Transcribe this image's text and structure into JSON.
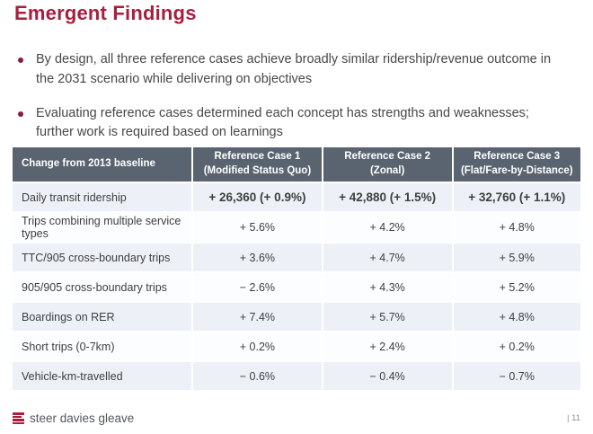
{
  "slide": {
    "title": "Emergent Findings",
    "bullets": [
      "By design, all three reference cases achieve broadly similar ridership/revenue outcome in the 2031 scenario while delivering on objectives",
      "Evaluating reference cases determined each concept has strengths and weaknesses;  further work is required based on learnings"
    ]
  },
  "table": {
    "header": {
      "baseline_label": "Change from 2013 baseline",
      "cases": [
        {
          "line1": "Reference Case 1",
          "line2": "(Modified Status Quo)"
        },
        {
          "line1": "Reference Case 2",
          "line2": "(Zonal)"
        },
        {
          "line1": "Reference Case 3",
          "line2": "(Flat/Fare-by-Distance)"
        }
      ]
    },
    "rows": [
      {
        "label": "Daily transit ridership",
        "values": [
          "+ 26,360 (+ 0.9%)",
          "+ 42,880 (+ 1.5%)",
          "+ 32,760 (+ 1.1%)"
        ]
      },
      {
        "label": "Trips combining multiple service types",
        "values": [
          "+ 5.6%",
          "+ 4.2%",
          "+ 4.8%"
        ]
      },
      {
        "label": "TTC/905 cross-boundary trips",
        "values": [
          "+ 3.6%",
          "+ 4.7%",
          "+ 5.9%"
        ]
      },
      {
        "label": "905/905 cross-boundary trips",
        "values": [
          "− 2.6%",
          "+ 4.3%",
          "+ 5.2%"
        ]
      },
      {
        "label": "Boardings on RER",
        "values": [
          "+ 7.4%",
          "+ 5.7%",
          "+ 4.8%"
        ]
      },
      {
        "label": "Short trips (0-7km)",
        "values": [
          "+ 0.2%",
          "+ 2.4%",
          "+ 0.2%"
        ]
      },
      {
        "label": "Vehicle-km-travelled",
        "values": [
          "− 0.6%",
          "− 0.4%",
          "− 0.7%"
        ]
      }
    ]
  },
  "footer": {
    "logo_text": "steer davies gleave",
    "page_number": "| 11"
  },
  "colors": {
    "accent_red": "#A81F3D",
    "bullet_marker": "#8E1B34",
    "header_bg": "#5A6470",
    "row_alt_bg": "#EDF1F7",
    "body_text": "#474747"
  }
}
